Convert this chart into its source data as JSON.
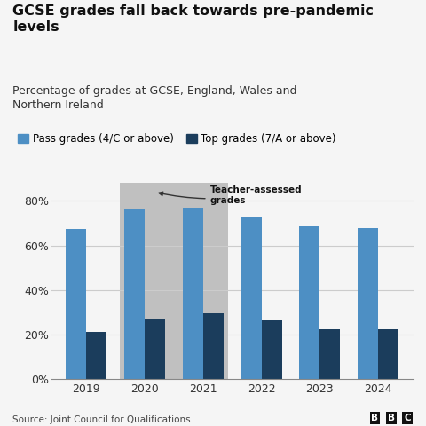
{
  "title": "GCSE grades fall back towards pre-pandemic\nlevels",
  "subtitle": "Percentage of grades at GCSE, England, Wales and\nNorthern Ireland",
  "years": [
    2019,
    2020,
    2021,
    2022,
    2023,
    2024
  ],
  "pass_grades": [
    67.5,
    76.3,
    77.1,
    73.0,
    68.7,
    67.9
  ],
  "top_grades": [
    21.1,
    26.7,
    29.7,
    26.5,
    22.3,
    22.2
  ],
  "pass_color": "#4d8fc4",
  "top_color": "#1b3d5c",
  "bg_color": "#f5f5f5",
  "teacher_shade_color": "#c0c0c0",
  "annotation_text": "Teacher-assessed\ngrades",
  "legend_pass": "Pass grades (4/C or above)",
  "legend_top": "Top grades (7/A or above)",
  "source": "Source: Joint Council for Qualifications",
  "ylim": [
    0,
    88
  ],
  "yticks": [
    0,
    20,
    40,
    60,
    80
  ],
  "bar_width": 0.35
}
